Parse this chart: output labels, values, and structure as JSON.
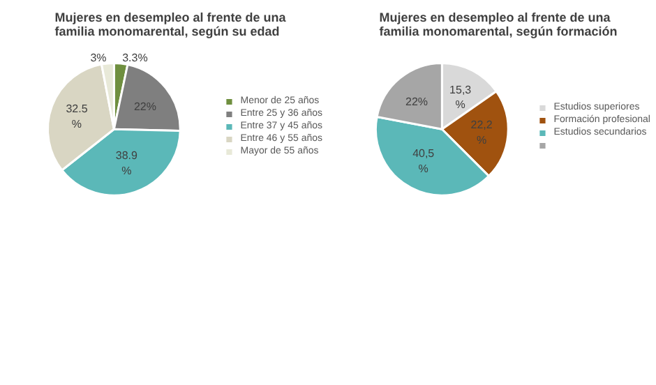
{
  "chart_data": [
    {
      "type": "pie",
      "title": "Mujeres en desempleo al frente de una familia monomarental, según su edad",
      "categories": [
        "Menor de 25 años",
        "Entre 25 y 36 años",
        "Entre 37 y 45 años",
        "Entre 46 y 55 años",
        "Mayor de 55 años"
      ],
      "values": [
        3.3,
        22,
        38.9,
        32.5,
        3
      ],
      "colors": [
        "#6f8f3f",
        "#7f7f7f",
        "#5bb8b8",
        "#d9d6c3",
        "#e8e9d8"
      ],
      "value_labels": [
        "3.3%",
        "22%",
        "38.9 %",
        "32.5 %",
        "3%"
      ],
      "legend": "right"
    },
    {
      "type": "pie",
      "title": "Mujeres en desempleo al frente de una familia monomarental, según formación",
      "categories": [
        "Estudios superiores",
        "Formación profesional",
        "Estudios secundarios",
        null
      ],
      "values": [
        15.3,
        22.2,
        40.5,
        22
      ],
      "colors": [
        "#d9d9d9",
        "#a0520f",
        "#5bb8b8",
        "#a6a6a6"
      ],
      "value_labels": [
        "15,3 %",
        "22,2 %",
        "40,5 %",
        "22%"
      ],
      "legend": "right"
    }
  ]
}
